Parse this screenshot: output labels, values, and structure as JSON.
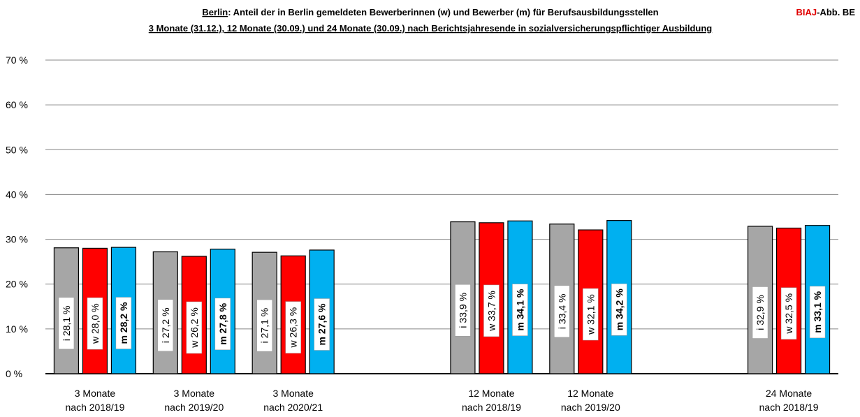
{
  "chart_data": {
    "type": "bar",
    "title": [
      "Berlin",
      ": Anteil der in Berlin gemeldeten Bewerberinnen (w) und Bewerber (m) für Berufsausbildungsstellen"
    ],
    "subtitle": "3 Monate (31.12.), 12 Monate (30.09.) und 24 Monate (30.09.) nach Berichtsjahresende in sozialversicherungspflichtiger Ausbildung",
    "source": [
      "BIAJ",
      "-Abb. BE"
    ],
    "categories": [
      [
        "3 Monate",
        "nach 2018/19"
      ],
      [
        "3 Monate",
        "nach 2019/20"
      ],
      [
        "3 Monate",
        "nach 2020/21"
      ],
      null,
      [
        "12 Monate",
        "nach 2018/19"
      ],
      [
        "12 Monate",
        "nach 2019/20"
      ],
      null,
      [
        "24 Monate",
        "nach 2018/19"
      ]
    ],
    "series": [
      {
        "name": "i",
        "color": "#a6a6a6",
        "values": [
          28.1,
          27.2,
          27.1,
          null,
          33.9,
          33.4,
          null,
          32.9
        ],
        "value_labels": [
          "i  28,1 %",
          "i  27,2 %",
          "i  27,1 %",
          null,
          "i  33,9 %",
          "i  33,4 %",
          null,
          "i  32,9 %"
        ]
      },
      {
        "name": "w",
        "color": "#ff0000",
        "values": [
          28.0,
          26.2,
          26.3,
          null,
          33.7,
          32.1,
          null,
          32.5
        ],
        "value_labels": [
          "w  28,0 %",
          "w  26,2 %",
          "w  26,3 %",
          null,
          "w  33,7 %",
          "w  32,1 %",
          null,
          "w  32,5 %"
        ]
      },
      {
        "name": "m",
        "color": "#00b0f0",
        "values": [
          28.2,
          27.8,
          27.6,
          null,
          34.1,
          34.2,
          null,
          33.1
        ],
        "value_labels": [
          "m  28,2 %",
          "m  27,8 %",
          "m  27,6 %",
          null,
          "m  34,1 %",
          "m  34,2 %",
          null,
          "m  33,1 %"
        ]
      }
    ],
    "ylim": [
      0,
      70
    ],
    "yticks": [
      {
        "value": 0,
        "label": "0 %"
      },
      {
        "value": 10,
        "label": "10 %"
      },
      {
        "value": 20,
        "label": "20 %"
      },
      {
        "value": 30,
        "label": "30 %"
      },
      {
        "value": 40,
        "label": "40 %"
      },
      {
        "value": 50,
        "label": "50 %"
      },
      {
        "value": 60,
        "label": "60 %"
      },
      {
        "value": 70,
        "label": "70 %"
      }
    ],
    "grid": true
  }
}
